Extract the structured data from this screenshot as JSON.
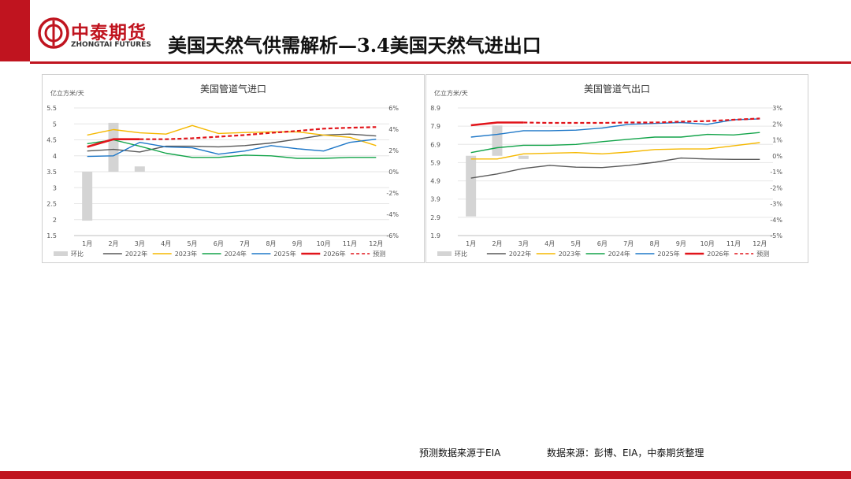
{
  "header": {
    "logo_cn": "中泰期货",
    "logo_en": "ZHONGTAI FUTURES",
    "title": "美国天然气供需解析—3.4美国天然气进出口"
  },
  "footer": {
    "forecast_note": "预测数据来源于EIA",
    "source_note": "数据来源：彭博、EIA，中泰期货整理"
  },
  "colors": {
    "brand_red": "#c0141f",
    "huanbi": "#d4d4d4",
    "y2022": "#595959",
    "y2023": "#f5b800",
    "y2024": "#13a44a",
    "y2025": "#1f78c8",
    "y2026": "#e1141a",
    "forecast": "#e1141a"
  },
  "chart_data": [
    {
      "type": "bar+line",
      "title": "美国管道气进口",
      "ylabel": "亿立方米/天",
      "ylim": [
        1.5,
        5.5
      ],
      "y_ticks": [
        "5.5",
        "5",
        "4.5",
        "4",
        "3.5",
        "3",
        "2.5",
        "2",
        "1.5"
      ],
      "y2lim": [
        -6,
        6
      ],
      "y2_ticks": [
        "6%",
        "4%",
        "2%",
        "0%",
        "-2%",
        "-4%",
        "-6%"
      ],
      "categories": [
        "1月",
        "2月",
        "3月",
        "4月",
        "5月",
        "6月",
        "7月",
        "8月",
        "9月",
        "10月",
        "11月",
        "12月"
      ],
      "bars": {
        "name": "环比",
        "axis": "right",
        "values": [
          -4.6,
          4.6,
          0.5,
          null,
          null,
          null,
          null,
          null,
          null,
          null,
          null,
          null
        ]
      },
      "series": [
        {
          "name": "2022年",
          "key": "y2022",
          "values": [
            4.15,
            4.2,
            4.12,
            4.3,
            4.3,
            4.28,
            4.32,
            4.4,
            4.52,
            4.65,
            4.68,
            4.62
          ]
        },
        {
          "name": "2023年",
          "key": "y2023",
          "values": [
            4.65,
            4.82,
            4.72,
            4.68,
            4.95,
            4.7,
            4.73,
            4.75,
            4.75,
            4.65,
            4.58,
            4.32
          ]
        },
        {
          "name": "2024年",
          "key": "y2024",
          "values": [
            4.38,
            4.5,
            4.3,
            4.08,
            3.95,
            3.95,
            4.02,
            4.0,
            3.92,
            3.92,
            3.95,
            3.95
          ]
        },
        {
          "name": "2025年",
          "key": "y2025",
          "values": [
            3.98,
            4.0,
            4.42,
            4.28,
            4.25,
            4.05,
            4.15,
            4.32,
            4.22,
            4.15,
            4.42,
            4.52
          ]
        },
        {
          "name": "2026年",
          "key": "y2026",
          "values": [
            4.28,
            4.52,
            4.52,
            null,
            null,
            null,
            null,
            null,
            null,
            null,
            null,
            null
          ]
        },
        {
          "name": "预测",
          "key": "forecast",
          "dashed": true,
          "values": [
            null,
            null,
            4.52,
            4.52,
            4.55,
            4.6,
            4.65,
            4.72,
            4.78,
            4.85,
            4.88,
            4.9
          ]
        }
      ],
      "legend": [
        "环比",
        "2022年",
        "2023年",
        "2024年",
        "2025年",
        "2026年",
        "预测"
      ]
    },
    {
      "type": "bar+line",
      "title": "美国管道气出口",
      "ylabel": "亿立方米/天",
      "ylim": [
        1.9,
        8.9
      ],
      "y_ticks": [
        "8.9",
        "7.9",
        "6.9",
        "5.9",
        "4.9",
        "3.9",
        "2.9",
        "1.9"
      ],
      "y2lim": [
        -5,
        3
      ],
      "y2_ticks": [
        "3%",
        "2%",
        "1%",
        "0%",
        "-1%",
        "-2%",
        "-3%",
        "-4%",
        "-5%"
      ],
      "categories": [
        "1月",
        "2月",
        "3月",
        "4月",
        "5月",
        "6月",
        "7月",
        "8月",
        "9月",
        "10月",
        "11月",
        "12月"
      ],
      "bars": {
        "name": "环比",
        "axis": "right",
        "values": [
          -3.8,
          1.9,
          -0.2,
          null,
          null,
          null,
          null,
          null,
          null,
          null,
          null,
          null
        ]
      },
      "series": [
        {
          "name": "2022年",
          "key": "y2022",
          "values": [
            5.05,
            5.28,
            5.58,
            5.75,
            5.65,
            5.63,
            5.75,
            5.92,
            6.15,
            6.1,
            6.08,
            6.08
          ]
        },
        {
          "name": "2023年",
          "key": "y2023",
          "values": [
            6.1,
            6.1,
            6.38,
            6.42,
            6.45,
            6.38,
            6.48,
            6.62,
            6.65,
            6.65,
            6.82,
            7.0
          ]
        },
        {
          "name": "2024年",
          "key": "y2024",
          "values": [
            6.45,
            6.72,
            6.85,
            6.85,
            6.9,
            7.05,
            7.18,
            7.3,
            7.3,
            7.45,
            7.42,
            7.55
          ]
        },
        {
          "name": "2025年",
          "key": "y2025",
          "values": [
            7.3,
            7.45,
            7.65,
            7.65,
            7.68,
            7.8,
            8.0,
            8.05,
            8.1,
            8.0,
            8.25,
            8.3
          ]
        },
        {
          "name": "2026年",
          "key": "y2026",
          "values": [
            7.95,
            8.1,
            8.1,
            null,
            null,
            null,
            null,
            null,
            null,
            null,
            null,
            null
          ]
        },
        {
          "name": "预测",
          "key": "forecast",
          "dashed": true,
          "values": [
            null,
            null,
            8.1,
            8.08,
            8.08,
            8.08,
            8.1,
            8.1,
            8.15,
            8.18,
            8.25,
            8.32
          ]
        }
      ],
      "legend": [
        "环比",
        "2022年",
        "2023年",
        "2024年",
        "2025年",
        "2026年",
        "预测"
      ]
    }
  ]
}
